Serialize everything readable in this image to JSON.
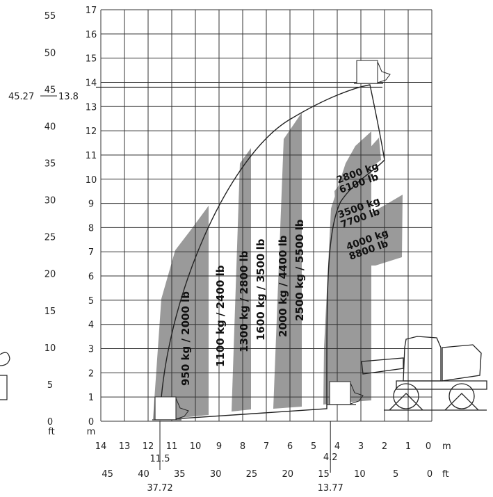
{
  "chart_data": {
    "type": "load-chart",
    "y_m_ticks": [
      "0",
      "1",
      "2",
      "3",
      "4",
      "5",
      "6",
      "7",
      "8",
      "9",
      "10",
      "11",
      "12",
      "13",
      "14",
      "15",
      "16",
      "17"
    ],
    "y_ft_ticks": [
      "0",
      "5",
      "10",
      "15",
      "20",
      "25",
      "30",
      "35",
      "40",
      "45",
      "50",
      "55"
    ],
    "x_m_ticks": [
      "14",
      "13",
      "12",
      "11",
      "10",
      "9",
      "8",
      "7",
      "6",
      "5",
      "4",
      "3",
      "2",
      "1",
      "0"
    ],
    "x_ft_ticks": [
      "45",
      "40",
      "35",
      "30",
      "25",
      "20",
      "15",
      "10",
      "5",
      "0"
    ],
    "y_unit_ft": "ft",
    "y_unit_m": "m",
    "x_unit_m": "m",
    "x_unit_ft": "ft",
    "max_height": {
      "ft": "45.27",
      "m": "13.8"
    },
    "reach_markers": [
      {
        "m": "11.5",
        "ft": "37.72"
      },
      {
        "m": "4.2",
        "ft": "13.77"
      }
    ],
    "bands": [
      {
        "label": "950 kg / 2000 lb",
        "shaded": true
      },
      {
        "label": "1100 kg / 2400 lb",
        "shaded": false
      },
      {
        "label": "1300 kg / 2800 lb",
        "shaded": true
      },
      {
        "label": "1600 kg / 3500 lb",
        "shaded": false
      },
      {
        "label": "2000 kg / 4400 lb",
        "shaded": true
      },
      {
        "label": "2500 kg / 5500 lb",
        "shaded": false
      }
    ],
    "front_zones": [
      {
        "kg": "2800 kg",
        "lb": "6100 lb",
        "shaded": true
      },
      {
        "kg": "3500 kg",
        "lb": "7700 lb",
        "shaded": false
      },
      {
        "kg": "4000 kg",
        "lb": "8800 lb",
        "shaded": true
      }
    ],
    "colors": {
      "shade": "#9a9a9a",
      "line": "#222222",
      "background": "#ffffff"
    }
  }
}
